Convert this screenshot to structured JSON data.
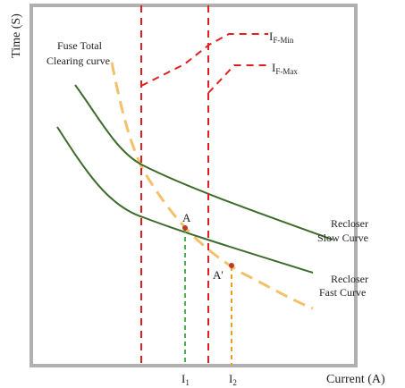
{
  "axes": {
    "y_label": "Time (S)",
    "x_label": "Current (A)"
  },
  "fuse": {
    "label_line1": "Fuse Total",
    "label_line2": "Clearing curve"
  },
  "limits": {
    "min_main": "I",
    "min_sub": "F-Min",
    "max_main": "I",
    "max_sub": "F-Max"
  },
  "recloser": {
    "slow_line1": "Recloser",
    "slow_line2": "Slow Curve",
    "fast_line1": "Recloser",
    "fast_line2": "Fast Curve"
  },
  "points": {
    "a": "A",
    "a_prime": "A'"
  },
  "currents": {
    "i1_main": "I",
    "i1_sub": "1",
    "i2_main": "I",
    "i2_sub": "2"
  },
  "colors": {
    "frame": "#aaaaaa",
    "recloser": "#3d6b2a",
    "fuse": "#f5c06a",
    "limit": "#e02020",
    "i1_marker": "#4caf50",
    "i2_marker": "#e8a020",
    "point": "#c0392b"
  }
}
